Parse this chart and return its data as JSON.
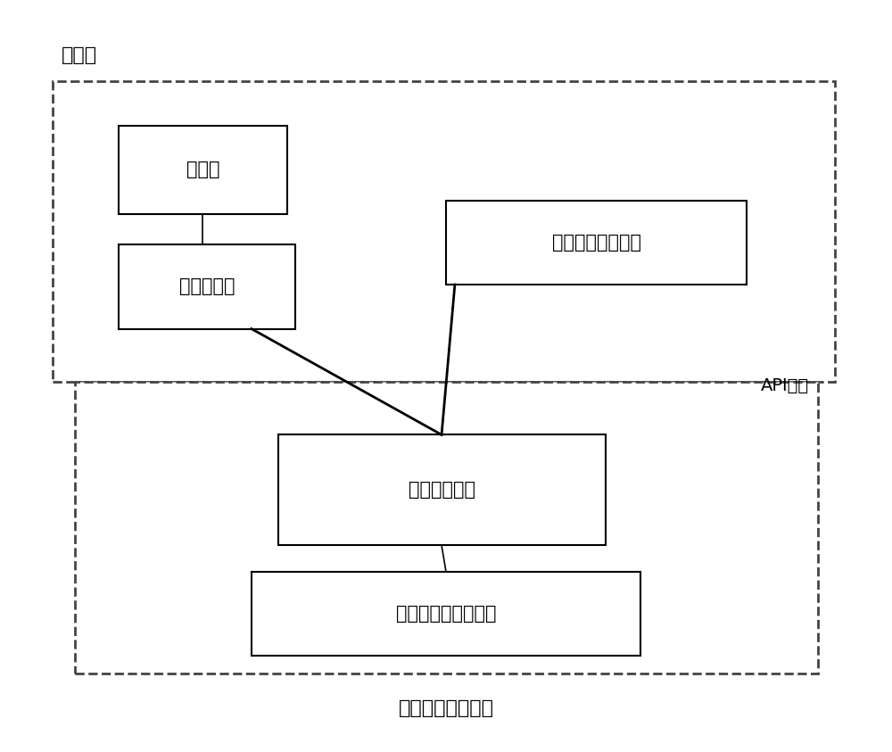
{
  "background_color": "#ffffff",
  "fig_width": 10.0,
  "fig_height": 8.43,
  "dpi": 100,
  "label_yingyong": "应用层",
  "label_api": "API接口",
  "label_os": "移动终端操作系统",
  "box_browser": "浏览器",
  "box_plugin": "浏览器插件",
  "box_client": "客户端与应用程序",
  "box_channel": "通道切换模块",
  "box_mobile": "移动终端联网子系统",
  "font_size_label": 16,
  "font_size_box": 15,
  "font_size_corner": 14,
  "line_color": "#000000",
  "dashed_color": "#444444"
}
